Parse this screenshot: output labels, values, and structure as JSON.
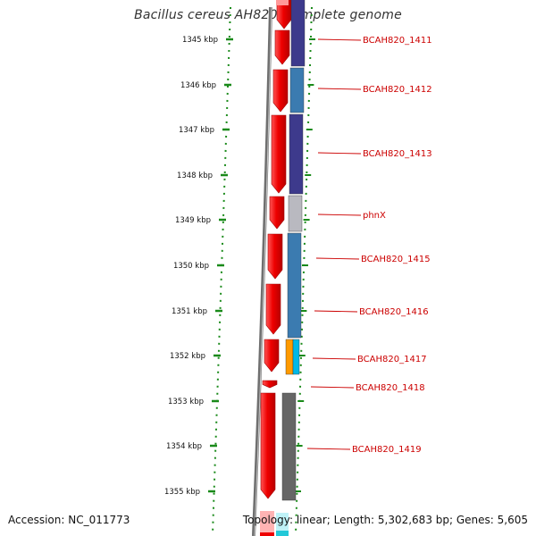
{
  "title": "Bacillus cereus AH820, complete genome",
  "accession": "Accession: NC_011773",
  "topology": "Topology: linear; Length: 5,302,683 bp; Genes: 5,605",
  "colors": {
    "ruler": "#1a8a1a",
    "gene_label": "#cc0000",
    "leader": "#cc0000",
    "strand_arrow": "#ee0000",
    "backbone": "#808080"
  },
  "ruler_ticks": [
    "1345 kbp",
    "1346 kbp",
    "1347 kbp",
    "1348 kbp",
    "1349 kbp",
    "1350 kbp",
    "1351 kbp",
    "1352 kbp",
    "1353 kbp",
    "1354 kbp",
    "1355 kbp"
  ],
  "genes": [
    {
      "label": "BCAH820_1411",
      "color": "#3d3a8c"
    },
    {
      "label": "BCAH820_1412",
      "color": "#3b7bb0"
    },
    {
      "label": "BCAH820_1413",
      "color": "#3d3a8c"
    },
    {
      "label": "phnX",
      "color": "#b9b9c0"
    },
    {
      "label": "BCAH820_1415",
      "color": "#3b7bb0"
    },
    {
      "label": "BCAH820_1416",
      "color": "#3b7bb0"
    },
    {
      "label": "BCAH820_1417",
      "color": "#ff9a00",
      "color2": "#00b8e6"
    },
    {
      "label": "BCAH820_1418",
      "color": "#ffffff"
    },
    {
      "label": "BCAH820_1419",
      "color": "#666666"
    }
  ]
}
